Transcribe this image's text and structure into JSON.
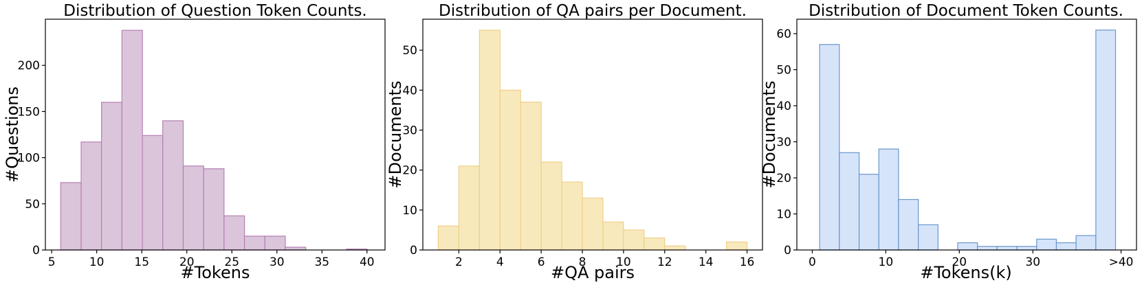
{
  "colors": {
    "question_fill": "#dbc5da",
    "question_edge": "#b57fb3",
    "qa_fill": "#f8e9bd",
    "qa_edge": "#efcf87",
    "doc_fill": "#d6e4fa",
    "doc_edge": "#6896cc",
    "axes": "#000000"
  },
  "chart_data": [
    {
      "type": "bar",
      "title": "Distribution of Question Token Counts.",
      "xlabel": "#Tokens",
      "ylabel": "#Questions",
      "xlim": [
        4.3,
        42.0
      ],
      "ylim": [
        0,
        250
      ],
      "xticks": [
        5,
        10,
        15,
        20,
        25,
        30,
        35,
        40
      ],
      "xtick_labels": [
        "5",
        "10",
        "15",
        "20",
        "25",
        "30",
        "35",
        "40"
      ],
      "yticks": [
        0,
        50,
        100,
        150,
        200
      ],
      "ytick_labels": [
        "0",
        "50",
        "100",
        "150",
        "200"
      ],
      "bin_edges": [
        6.0,
        8.27,
        10.53,
        12.8,
        15.07,
        17.33,
        19.6,
        21.87,
        24.13,
        26.4,
        28.67,
        30.93,
        33.2,
        35.47,
        37.73,
        40.0
      ],
      "values": [
        73,
        117,
        160,
        238,
        124,
        140,
        91,
        88,
        37,
        15,
        15,
        3,
        0,
        0,
        1
      ],
      "color_key": "question"
    },
    {
      "type": "bar",
      "title": "Distribution of QA pairs per Document.",
      "xlabel": "#QA pairs",
      "ylabel": "#Documents",
      "xlim": [
        0.25,
        16.75
      ],
      "ylim": [
        0,
        57.75
      ],
      "xticks": [
        2,
        4,
        6,
        8,
        10,
        12,
        14,
        16
      ],
      "xtick_labels": [
        "2",
        "4",
        "6",
        "8",
        "10",
        "12",
        "14",
        "16"
      ],
      "yticks": [
        0,
        10,
        20,
        30,
        40,
        50
      ],
      "ytick_labels": [
        "0",
        "10",
        "20",
        "30",
        "40",
        "50"
      ],
      "bin_edges": [
        1,
        2,
        3,
        4,
        5,
        6,
        7,
        8,
        9,
        10,
        11,
        12,
        13,
        14,
        15,
        16
      ],
      "values": [
        6,
        21,
        55,
        40,
        37,
        22,
        17,
        13,
        7,
        5,
        3,
        1,
        0,
        0,
        2
      ],
      "color_key": "qa"
    },
    {
      "type": "bar",
      "title": "Distribution of Document Token Counts.",
      "xlabel": "#Tokens(k)",
      "ylabel": "#Documents",
      "xlim": [
        -2.1,
        44.1
      ],
      "ylim": [
        0,
        64
      ],
      "xticks": [
        0,
        10,
        20,
        30,
        42
      ],
      "xtick_labels": [
        "0",
        "10",
        "20",
        "30",
        ">40"
      ],
      "yticks": [
        0,
        10,
        20,
        30,
        40,
        50,
        60
      ],
      "ytick_labels": [
        "0",
        "10",
        "20",
        "30",
        "40",
        "50",
        "60"
      ],
      "bin_edges": [
        1.0,
        3.68,
        6.37,
        9.05,
        11.73,
        14.42,
        17.1,
        19.78,
        22.47,
        25.15,
        27.83,
        30.52,
        33.2,
        35.88,
        38.57,
        41.25
      ],
      "values": [
        57,
        27,
        21,
        28,
        14,
        7,
        0,
        2,
        1,
        1,
        1,
        3,
        2,
        4,
        61
      ],
      "color_key": "doc"
    }
  ]
}
